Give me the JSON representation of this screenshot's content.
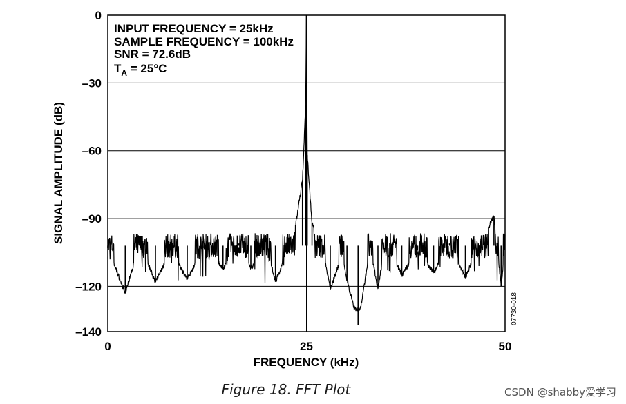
{
  "chart_data": {
    "type": "line",
    "title": "",
    "xlabel": "FREQUENCY (kHz)",
    "ylabel": "SIGNAL AMPLITUDE (dB)",
    "xlim": [
      0,
      50
    ],
    "ylim": [
      -140,
      0
    ],
    "x_ticks": [
      "0",
      "25",
      "50"
    ],
    "y_ticks": [
      "0",
      "–30",
      "–60",
      "–90",
      "–120",
      "–140"
    ],
    "grid": true,
    "annotations": [
      "INPUT FREQUENCY = 25kHz",
      "SAMPLE FREQUENCY = 100kHz",
      "SNR = 72.6dB",
      "T_A = 25°C"
    ],
    "side_code": "07730-018",
    "series": [
      {
        "noise_floor_db": -102,
        "points": [
          [
            0,
            -103
          ],
          [
            2.2,
            -123
          ],
          [
            4,
            -101
          ],
          [
            6,
            -118
          ],
          [
            8,
            -104
          ],
          [
            10,
            -117
          ],
          [
            12,
            -103
          ],
          [
            14.5,
            -112
          ],
          [
            16.5,
            -101
          ],
          [
            18,
            -112
          ],
          [
            20,
            -102
          ],
          [
            21.1,
            -118
          ],
          [
            23.5,
            -96
          ],
          [
            24.5,
            -73
          ],
          [
            24.9,
            -40
          ],
          [
            25,
            0
          ],
          [
            25.1,
            -62
          ],
          [
            25.7,
            -92
          ],
          [
            27,
            -103
          ],
          [
            28,
            -121
          ],
          [
            29.5,
            -106
          ],
          [
            30.1,
            -117
          ],
          [
            31.5,
            -137
          ],
          [
            33,
            -103
          ],
          [
            34,
            -121
          ],
          [
            35,
            -99
          ],
          [
            37,
            -115
          ],
          [
            39,
            -104
          ],
          [
            41,
            -114
          ],
          [
            43,
            -101
          ],
          [
            45,
            -116
          ],
          [
            47,
            -100
          ],
          [
            48.6,
            -89
          ],
          [
            49.5,
            -120
          ],
          [
            50,
            -102
          ]
        ]
      }
    ]
  },
  "caption": "Figure 18. FFT Plot",
  "watermark": "CSDN @shabby爱学习"
}
